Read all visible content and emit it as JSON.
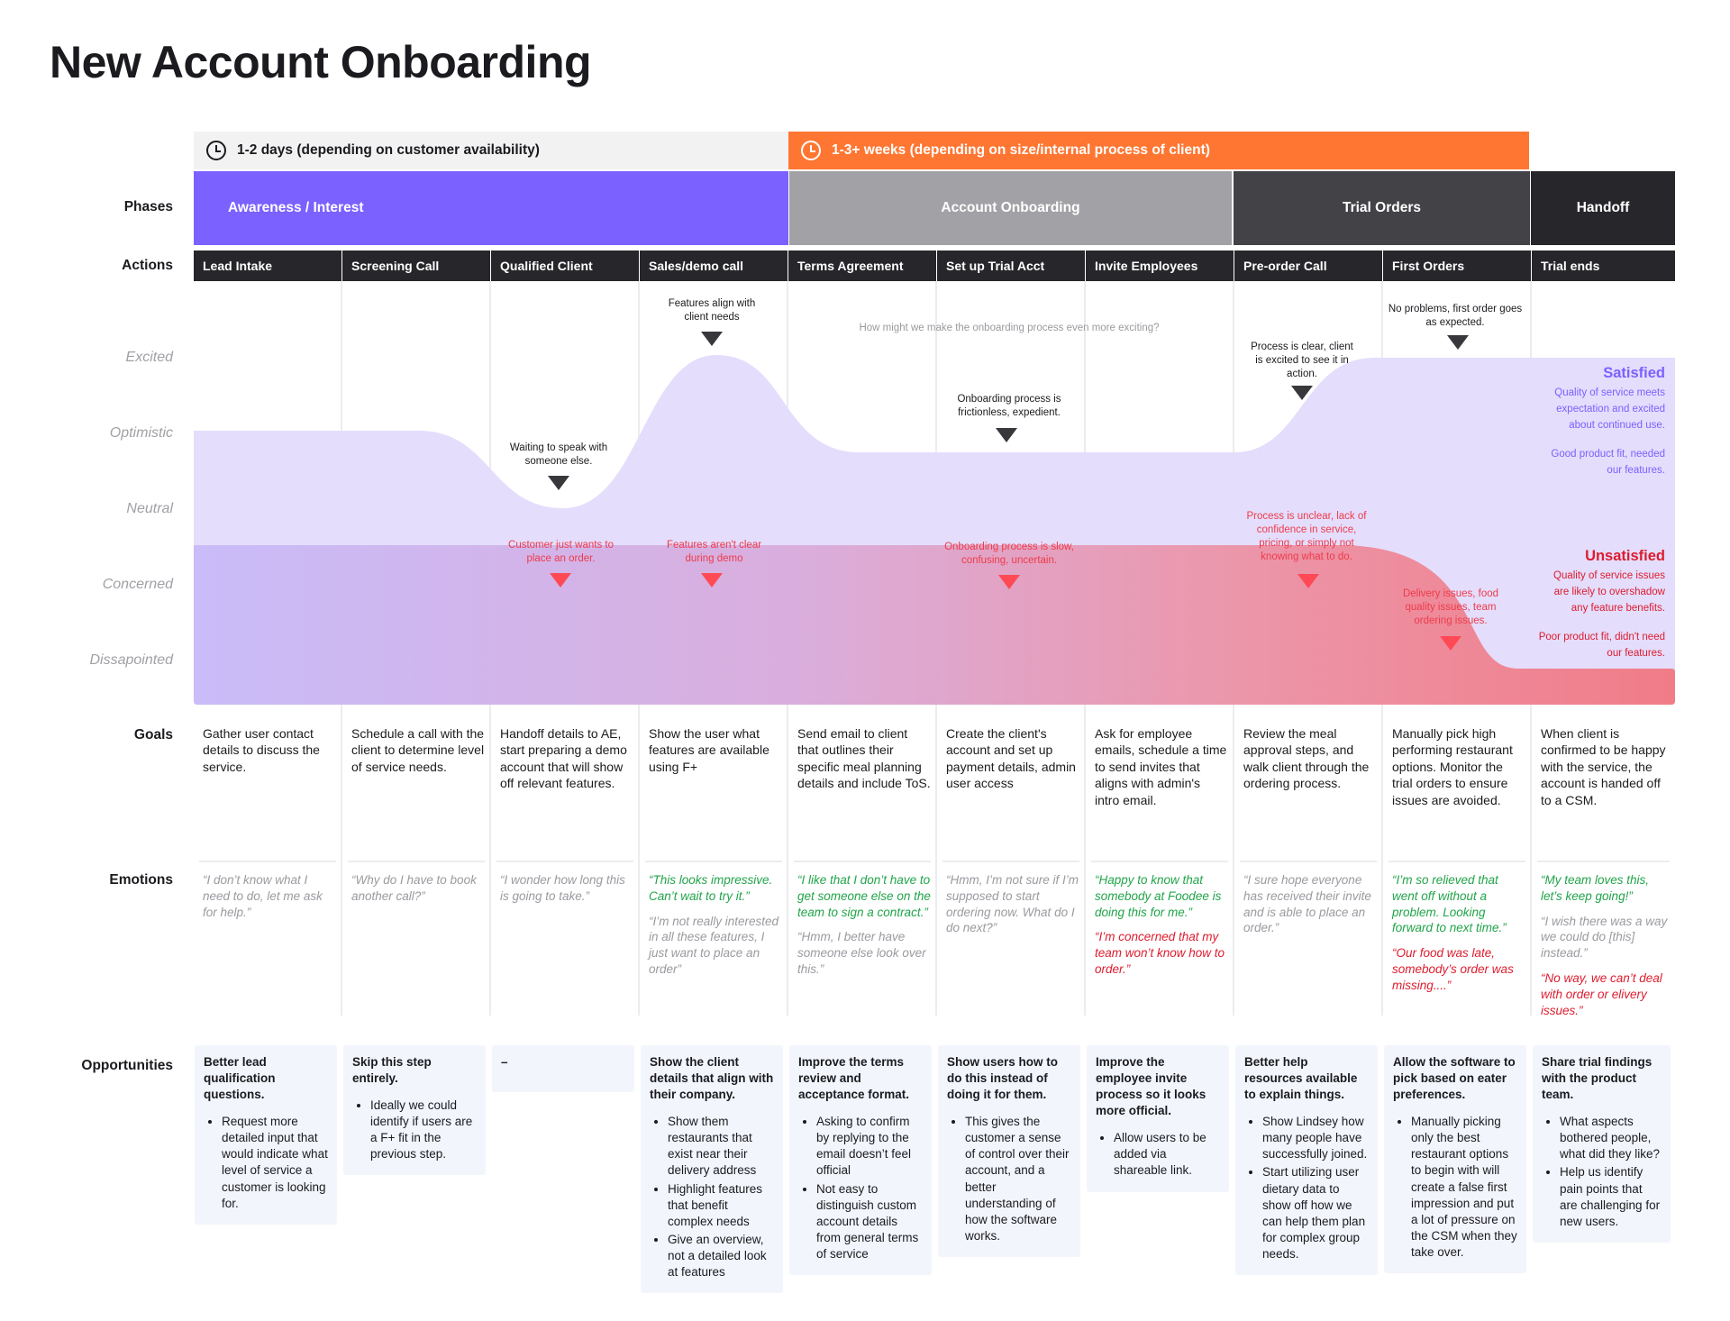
{
  "title": "New Account Onboarding",
  "timeline": [
    {
      "label": "1-2 days (depending on customer availability)"
    },
    {
      "label": "1-3+ weeks (depending on size/internal process of client)"
    }
  ],
  "row_labels": {
    "phases": "Phases",
    "actions": "Actions",
    "goals": "Goals",
    "emotions": "Emotions",
    "opportunities": "Opportunities"
  },
  "phases": [
    "Awareness / Interest",
    "Account Onboarding",
    "Trial Orders",
    "Handoff"
  ],
  "actions": [
    "Lead Intake",
    "Screening Call",
    "Qualified Client",
    "Sales/demo call",
    "Terms Agreement",
    "Set up Trial Acct",
    "Invite Employees",
    "Pre-order Call",
    "First Orders",
    "Trial ends"
  ],
  "emotion_scale": [
    "Excited",
    "Optimistic",
    "Neutral",
    "Concerned",
    "Dissapointed"
  ],
  "chart": {
    "question": "How might we make the onboarding process even more exciting?",
    "positive_notes": [
      "Waiting to speak with someone else.",
      "Features align with client needs",
      "Onboarding process is frictionless, expedient.",
      "Process is clear, client is excited to see it in action.",
      "No problems, first order goes as expected."
    ],
    "negative_notes": [
      "Customer just wants to place an order.",
      "Features aren't clear during demo",
      "Onboarding process is slow, confusing, uncertain.",
      "Process is unclear, lack of confidence in service, pricing, or simply not knowing what to do.",
      "Delivery issues, food quality issues, team ordering issues."
    ],
    "satisfied": {
      "title": "Satisfied",
      "p1": "Quality of service meets expectation and excited about continued use.",
      "p2": "Good product fit, needed our features."
    },
    "unsatisfied": {
      "title": "Unsatisfied",
      "p1": "Quality of service issues are likely to overshadow any feature benefits.",
      "p2": "Poor product fit, didn't need our features."
    }
  },
  "goals": [
    "Gather user contact details to discuss the service.",
    "Schedule a call with the client to determine level of service needs.",
    "Handoff details to AE, start preparing a demo account that will show off relevant features.",
    "Show the user what features are available using F+",
    "Send email to client that outlines their specific meal planning details and include ToS.",
    "Create the client's account and set up payment details, admin user access",
    "Ask for employee emails, schedule a time to send invites that aligns with admin's intro email.",
    "Review the meal approval steps, and walk client through the ordering process.",
    "Manually pick high performing restaurant options. Monitor the trial orders to ensure issues are avoided.",
    "When client is confirmed to be happy with the service, the account is handed off to a CSM."
  ],
  "emotions": [
    [
      {
        "tone": "neutral",
        "text": "“I don’t know what I need to do, let me ask for help.”"
      }
    ],
    [
      {
        "tone": "neutral",
        "text": "“Why do I have to book another call?”"
      }
    ],
    [
      {
        "tone": "neutral",
        "text": "“I wonder how long this is going to take.”"
      }
    ],
    [
      {
        "tone": "positive",
        "text": "“This looks impressive. Can’t wait to try it.”"
      },
      {
        "tone": "neutral",
        "text": "“I’m not really interested in all these features, I just want to place an order”"
      }
    ],
    [
      {
        "tone": "positive",
        "text": "“I like that I don’t have to get someone else on the team to sign a contract.”"
      },
      {
        "tone": "neutral",
        "text": "“Hmm, I better have someone else look over this.”"
      }
    ],
    [
      {
        "tone": "neutral",
        "text": "“Hmm, I’m not sure if I’m supposed to start ordering now. What do I do next?”"
      }
    ],
    [
      {
        "tone": "positive",
        "text": "“Happy to know that somebody at Foodee is doing this for me.”"
      },
      {
        "tone": "negative",
        "text": "“I’m concerned that my team won’t know how to order.”"
      }
    ],
    [
      {
        "tone": "neutral",
        "text": "“I sure hope everyone has received their invite and is able to place an order.”"
      }
    ],
    [
      {
        "tone": "positive",
        "text": "“I’m so relieved that went off without a problem. Looking forward to next time.”"
      },
      {
        "tone": "negative",
        "text": "“Our food was late, somebody’s order was missing....”"
      }
    ],
    [
      {
        "tone": "positive",
        "text": "“My team loves this, let’s keep going!”"
      },
      {
        "tone": "neutral",
        "text": "“I wish there was a way we could do [this] instead.”"
      },
      {
        "tone": "negative",
        "text": "“No way, we can’t deal with order or elivery issues.”"
      }
    ]
  ],
  "opportunities": [
    {
      "title": "Better lead qualification questions.",
      "items": [
        "Request more detailed input that would indicate what level of service a customer is looking for."
      ]
    },
    {
      "title": "Skip this step entirely.",
      "items": [
        "Ideally we could identify if users are a F+ fit in the previous step."
      ]
    },
    {
      "title": "–",
      "items": []
    },
    {
      "title": "Show the client details that align with their company.",
      "items": [
        "Show them restaurants that exist near their delivery address",
        "Highlight features that benefit complex needs",
        "Give an overview, not a detailed look at features"
      ]
    },
    {
      "title": "Improve the terms review and acceptance format.",
      "items": [
        "Asking to confirm by replying to the email doesn’t feel official",
        "Not easy to distinguish custom account details from general terms of service"
      ]
    },
    {
      "title": "Show users how to do this instead of doing it for them.",
      "items": [
        "This gives the customer a sense of control over their account, and a better understanding of how the software works."
      ]
    },
    {
      "title": "Improve the employee invite process so it looks more official.",
      "items": [
        "Allow users to be added via shareable link."
      ]
    },
    {
      "title": "Better help resources available to explain things.",
      "items": [
        "Show Lindsey how many people have successfully joined.",
        "Start utilizing user dietary data to show off how we can help them plan for complex group needs."
      ]
    },
    {
      "title": "Allow the software to pick based on eater preferences.",
      "items": [
        "Manually picking only the best restaurant options to begin with will create a false first impression and put a lot of pressure on the CSM when they take over."
      ]
    },
    {
      "title": "Share trial findings with the product team.",
      "items": [
        "What aspects bothered people, what did they like?",
        "Help us identify pain points that are challenging for new users."
      ]
    }
  ],
  "colors": {
    "accent": "#7b61ff",
    "orange": "#ff7632",
    "positive": "#21a44a",
    "negative": "#dd1c2e"
  }
}
